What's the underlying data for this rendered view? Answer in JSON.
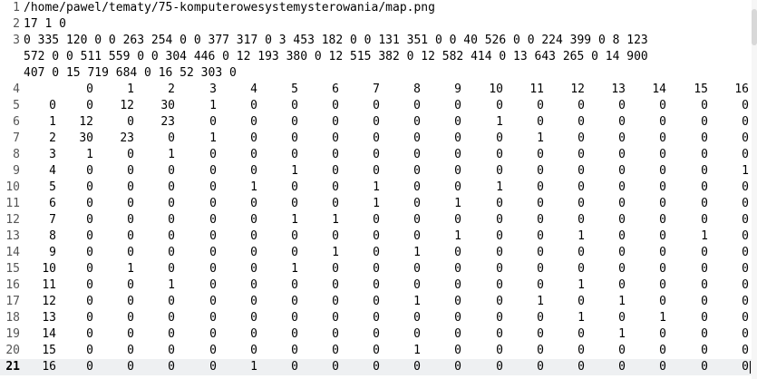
{
  "lines": [
    {
      "num": "1",
      "text": "/home/pawel/tematy/75-komputerowesystemysterowania/map.png"
    },
    {
      "num": "2",
      "text": "17 1 0"
    },
    {
      "num": "3",
      "text": "0 335 120 0 0 263 254 0 0 377 317 0 3 453 182 0 0 131 351 0 0 40 526 0 0 224 399 0 8 123\n572 0 0 511 559 0 0 304 446 0 12 193 380 0 12 515 382 0 12 582 414 0 13 643 265 0 14 900\n407 0 15 719 684 0 16 52 303 0"
    }
  ],
  "header_row": {
    "num": "4",
    "cells": [
      "0",
      "1",
      "2",
      "3",
      "4",
      "5",
      "6",
      "7",
      "8",
      "9",
      "10",
      "11",
      "12",
      "13",
      "14",
      "15",
      "16"
    ]
  },
  "matrix_rows": [
    {
      "num": "5",
      "label": "0",
      "cells": [
        "0",
        "12",
        "30",
        "1",
        "0",
        "0",
        "0",
        "0",
        "0",
        "0",
        "0",
        "0",
        "0",
        "0",
        "0",
        "0",
        "0"
      ]
    },
    {
      "num": "6",
      "label": "1",
      "cells": [
        "12",
        "0",
        "23",
        "0",
        "0",
        "0",
        "0",
        "0",
        "0",
        "0",
        "1",
        "0",
        "0",
        "0",
        "0",
        "0",
        "0"
      ]
    },
    {
      "num": "7",
      "label": "2",
      "cells": [
        "30",
        "23",
        "0",
        "1",
        "0",
        "0",
        "0",
        "0",
        "0",
        "0",
        "0",
        "1",
        "0",
        "0",
        "0",
        "0",
        "0"
      ]
    },
    {
      "num": "8",
      "label": "3",
      "cells": [
        "1",
        "0",
        "1",
        "0",
        "0",
        "0",
        "0",
        "0",
        "0",
        "0",
        "0",
        "0",
        "0",
        "0",
        "0",
        "0",
        "0"
      ]
    },
    {
      "num": "9",
      "label": "4",
      "cells": [
        "0",
        "0",
        "0",
        "0",
        "0",
        "1",
        "0",
        "0",
        "0",
        "0",
        "0",
        "0",
        "0",
        "0",
        "0",
        "0",
        "1"
      ]
    },
    {
      "num": "10",
      "label": "5",
      "cells": [
        "0",
        "0",
        "0",
        "0",
        "1",
        "0",
        "0",
        "1",
        "0",
        "0",
        "1",
        "0",
        "0",
        "0",
        "0",
        "0",
        "0"
      ]
    },
    {
      "num": "11",
      "label": "6",
      "cells": [
        "0",
        "0",
        "0",
        "0",
        "0",
        "0",
        "0",
        "1",
        "0",
        "1",
        "0",
        "0",
        "0",
        "0",
        "0",
        "0",
        "0"
      ]
    },
    {
      "num": "12",
      "label": "7",
      "cells": [
        "0",
        "0",
        "0",
        "0",
        "0",
        "1",
        "1",
        "0",
        "0",
        "0",
        "0",
        "0",
        "0",
        "0",
        "0",
        "0",
        "0"
      ]
    },
    {
      "num": "13",
      "label": "8",
      "cells": [
        "0",
        "0",
        "0",
        "0",
        "0",
        "0",
        "0",
        "0",
        "0",
        "1",
        "0",
        "0",
        "1",
        "0",
        "0",
        "1",
        "0"
      ]
    },
    {
      "num": "14",
      "label": "9",
      "cells": [
        "0",
        "0",
        "0",
        "0",
        "0",
        "0",
        "1",
        "0",
        "1",
        "0",
        "0",
        "0",
        "0",
        "0",
        "0",
        "0",
        "0"
      ]
    },
    {
      "num": "15",
      "label": "10",
      "cells": [
        "0",
        "1",
        "0",
        "0",
        "0",
        "1",
        "0",
        "0",
        "0",
        "0",
        "0",
        "0",
        "0",
        "0",
        "0",
        "0",
        "0"
      ]
    },
    {
      "num": "16",
      "label": "11",
      "cells": [
        "0",
        "0",
        "1",
        "0",
        "0",
        "0",
        "0",
        "0",
        "0",
        "0",
        "0",
        "0",
        "1",
        "0",
        "0",
        "0",
        "0"
      ]
    },
    {
      "num": "17",
      "label": "12",
      "cells": [
        "0",
        "0",
        "0",
        "0",
        "0",
        "0",
        "0",
        "0",
        "1",
        "0",
        "0",
        "1",
        "0",
        "1",
        "0",
        "0",
        "0"
      ]
    },
    {
      "num": "18",
      "label": "13",
      "cells": [
        "0",
        "0",
        "0",
        "0",
        "0",
        "0",
        "0",
        "0",
        "0",
        "0",
        "0",
        "0",
        "1",
        "0",
        "1",
        "0",
        "0"
      ]
    },
    {
      "num": "19",
      "label": "14",
      "cells": [
        "0",
        "0",
        "0",
        "0",
        "0",
        "0",
        "0",
        "0",
        "0",
        "0",
        "0",
        "0",
        "0",
        "1",
        "0",
        "0",
        "0"
      ]
    },
    {
      "num": "20",
      "label": "15",
      "cells": [
        "0",
        "0",
        "0",
        "0",
        "0",
        "0",
        "0",
        "0",
        "1",
        "0",
        "0",
        "0",
        "0",
        "0",
        "0",
        "0",
        "0"
      ]
    },
    {
      "num": "21",
      "label": "16",
      "cells": [
        "0",
        "0",
        "0",
        "0",
        "1",
        "0",
        "0",
        "0",
        "0",
        "0",
        "0",
        "0",
        "0",
        "0",
        "0",
        "0",
        "0"
      ]
    }
  ],
  "current_line": "21"
}
